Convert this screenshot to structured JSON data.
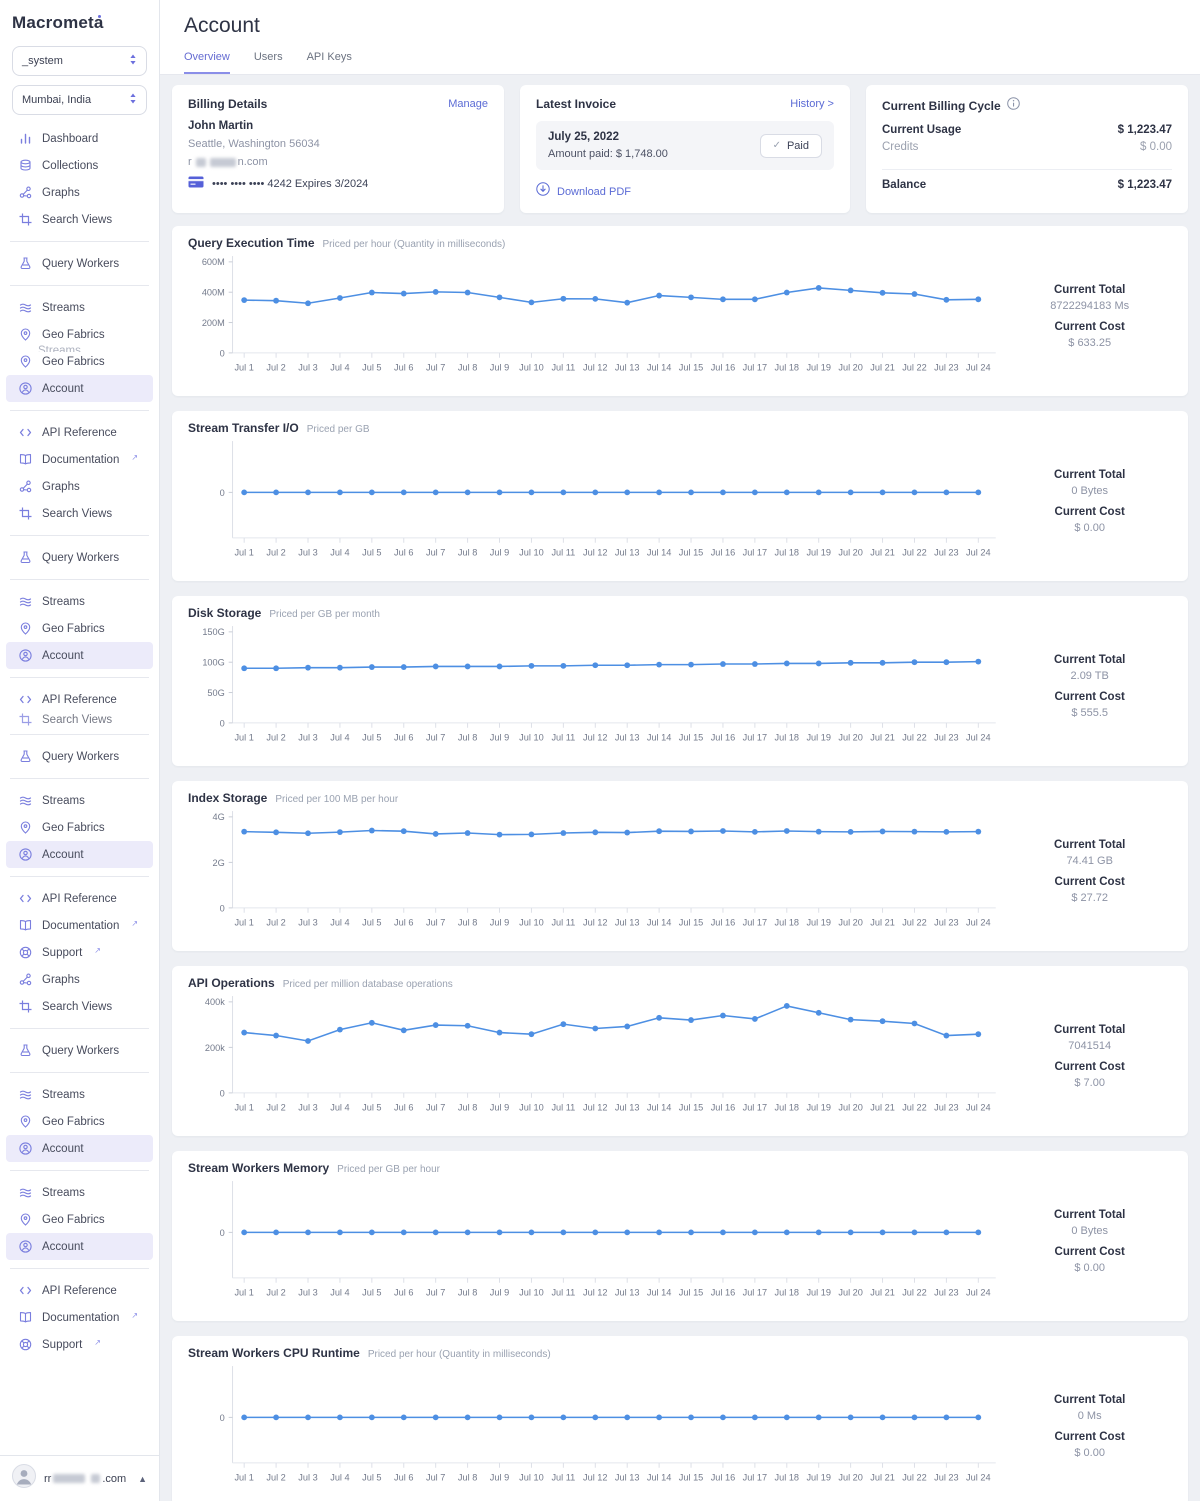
{
  "app": {
    "logo": "Macrometa"
  },
  "sidebar": {
    "fabric_select": "_system",
    "region_select": "Mumbai, India",
    "items": [
      {
        "icon": "dashboard",
        "label": "Dashboard"
      },
      {
        "icon": "collections",
        "label": "Collections"
      },
      {
        "icon": "graphs",
        "label": "Graphs"
      },
      {
        "icon": "search-views",
        "label": "Search Views"
      },
      {
        "type": "divider"
      },
      {
        "icon": "query-workers",
        "label": "Query Workers"
      },
      {
        "type": "divider"
      },
      {
        "icon": "streams",
        "label": "Streams"
      },
      {
        "icon": "geo-fabrics",
        "label": "Geo Fabrics",
        "glitch": "Streams"
      },
      {
        "icon": "geo-fabrics",
        "label": "Geo Fabrics"
      },
      {
        "icon": "account",
        "label": "Account",
        "active": true
      },
      {
        "type": "divider"
      },
      {
        "icon": "api-reference",
        "label": "API Reference"
      },
      {
        "icon": "documentation",
        "label": "Documentation",
        "external": true
      },
      {
        "icon": "graphs",
        "label": "Graphs"
      },
      {
        "icon": "search-views",
        "label": "Search Views"
      },
      {
        "type": "divider"
      },
      {
        "icon": "query-workers",
        "label": "Query Workers"
      },
      {
        "type": "divider"
      },
      {
        "icon": "streams",
        "label": "Streams"
      },
      {
        "icon": "geo-fabrics",
        "label": "Geo Fabrics"
      },
      {
        "icon": "account",
        "label": "Account",
        "active": true
      },
      {
        "type": "divider"
      },
      {
        "icon": "api-reference",
        "label": "API Reference"
      },
      {
        "icon": "search-views",
        "label": "Search Views",
        "clipped": true
      },
      {
        "type": "divider"
      },
      {
        "icon": "query-workers",
        "label": "Query Workers"
      },
      {
        "type": "divider"
      },
      {
        "icon": "streams",
        "label": "Streams"
      },
      {
        "icon": "geo-fabrics",
        "label": "Geo Fabrics"
      },
      {
        "icon": "account",
        "label": "Account",
        "active": true
      },
      {
        "type": "divider"
      },
      {
        "icon": "api-reference",
        "label": "API Reference"
      },
      {
        "icon": "documentation",
        "label": "Documentation",
        "external": true
      },
      {
        "icon": "support",
        "label": "Support",
        "external": true
      },
      {
        "icon": "graphs",
        "label": "Graphs"
      },
      {
        "icon": "search-views",
        "label": "Search Views"
      },
      {
        "type": "divider"
      },
      {
        "icon": "query-workers",
        "label": "Query Workers"
      },
      {
        "type": "divider"
      },
      {
        "icon": "streams",
        "label": "Streams"
      },
      {
        "icon": "geo-fabrics",
        "label": "Geo Fabrics"
      },
      {
        "icon": "account",
        "label": "Account",
        "active": true
      },
      {
        "type": "divider"
      },
      {
        "icon": "streams",
        "label": "Streams"
      },
      {
        "icon": "geo-fabrics",
        "label": "Geo Fabrics"
      },
      {
        "icon": "account",
        "label": "Account",
        "active": true
      },
      {
        "type": "divider"
      },
      {
        "icon": "api-reference",
        "label": "API Reference"
      },
      {
        "icon": "documentation",
        "label": "Documentation",
        "external": true
      },
      {
        "icon": "support",
        "label": "Support",
        "external": true
      }
    ],
    "user_email_start": "rr",
    "user_email_end": ".com"
  },
  "header": {
    "title": "Account",
    "tabs": [
      {
        "label": "Overview",
        "active": true
      },
      {
        "label": "Users"
      },
      {
        "label": "API Keys"
      }
    ]
  },
  "billing_details": {
    "title": "Billing Details",
    "manage_label": "Manage",
    "name": "John Martin",
    "address": "Seattle, Washington 56034",
    "email_start": "r",
    "email_end": "n.com",
    "card_mask": "•••• •••• •••• 4242",
    "card_expiry": "Expires 3/2024"
  },
  "latest_invoice": {
    "title": "Latest Invoice",
    "history_label": "History >",
    "date": "July 25, 2022",
    "amount_line": "Amount paid: $ 1,748.00",
    "paid_label": "Paid",
    "download_label": "Download PDF"
  },
  "billing_cycle": {
    "title": "Current Billing Cycle",
    "usage_label": "Current Usage",
    "usage_value": "$ 1,223.47",
    "credits_label": "Credits",
    "credits_value": "$ 0.00",
    "balance_label": "Balance",
    "balance_value": "$ 1,223.47"
  },
  "stats_labels": {
    "total": "Current Total",
    "cost": "Current Cost"
  },
  "chart_data": {
    "type": "line",
    "line_color": "#4d8fe3",
    "grid": false,
    "legend": "none",
    "categories": [
      "Jul 1",
      "Jul 2",
      "Jul 3",
      "Jul 4",
      "Jul 5",
      "Jul 6",
      "Jul 7",
      "Jul 8",
      "Jul 9",
      "Jul 10",
      "Jul 11",
      "Jul 12",
      "Jul 13",
      "Jul 14",
      "Jul 15",
      "Jul 16",
      "Jul 17",
      "Jul 18",
      "Jul 19",
      "Jul 20",
      "Jul 21",
      "Jul 22",
      "Jul 23",
      "Jul 24"
    ],
    "charts": [
      {
        "title": "Query Execution Time",
        "subtitle": "Priced per hour (Quantity in milliseconds)",
        "unit": "M",
        "ylim": [
          0,
          600
        ],
        "yticks": [
          [
            0,
            "0"
          ],
          [
            200,
            "200M"
          ],
          [
            400,
            "400M"
          ],
          [
            600,
            "600M"
          ]
        ],
        "values": [
          348,
          344,
          327,
          362,
          398,
          391,
          402,
          398,
          366,
          333,
          357,
          356,
          331,
          378,
          366,
          353,
          353,
          398,
          428,
          412,
          396,
          388,
          350,
          353
        ],
        "current_total": "8722294183 Ms",
        "current_cost": "$ 633.25"
      },
      {
        "title": "Stream Transfer I/O",
        "subtitle": "Priced per GB",
        "unit": "GB",
        "ylim": [
          -1,
          1
        ],
        "yticks": [
          [
            0,
            "0"
          ]
        ],
        "values": [
          0,
          0,
          0,
          0,
          0,
          0,
          0,
          0,
          0,
          0,
          0,
          0,
          0,
          0,
          0,
          0,
          0,
          0,
          0,
          0,
          0,
          0,
          0,
          0
        ],
        "current_total": "0 Bytes",
        "current_cost": "$ 0.00"
      },
      {
        "title": "Disk Storage",
        "subtitle": "Priced per GB per month",
        "unit": "G",
        "ylim": [
          0,
          150
        ],
        "yticks": [
          [
            0,
            "0"
          ],
          [
            50,
            "50G"
          ],
          [
            100,
            "100G"
          ],
          [
            150,
            "150G"
          ]
        ],
        "values": [
          90,
          90,
          91,
          91,
          92,
          92,
          93,
          93,
          93,
          94,
          94,
          95,
          95,
          96,
          96,
          97,
          97,
          98,
          98,
          99,
          99,
          100,
          100,
          101
        ],
        "current_total": "2.09 TB",
        "current_cost": "$ 555.5"
      },
      {
        "title": "Index Storage",
        "subtitle": "Priced per 100 MB per hour",
        "unit": "G",
        "ylim": [
          0,
          4
        ],
        "yticks": [
          [
            0,
            "0"
          ],
          [
            2,
            "2G"
          ],
          [
            4,
            "4G"
          ]
        ],
        "values": [
          3.35,
          3.32,
          3.28,
          3.33,
          3.4,
          3.37,
          3.25,
          3.29,
          3.22,
          3.23,
          3.29,
          3.32,
          3.31,
          3.37,
          3.36,
          3.38,
          3.34,
          3.38,
          3.35,
          3.34,
          3.36,
          3.35,
          3.34,
          3.35
        ],
        "current_total": "74.41 GB",
        "current_cost": "$ 27.72"
      },
      {
        "title": "API Operations",
        "subtitle": "Priced per million database operations",
        "unit": "k",
        "ylim": [
          0,
          400
        ],
        "yticks": [
          [
            0,
            "0"
          ],
          [
            200,
            "200k"
          ],
          [
            400,
            "400k"
          ]
        ],
        "values": [
          265,
          252,
          228,
          278,
          308,
          275,
          298,
          295,
          265,
          258,
          302,
          283,
          292,
          330,
          320,
          340,
          325,
          382,
          352,
          322,
          315,
          305,
          252,
          258
        ],
        "current_total": "7041514",
        "current_cost": "$ 7.00"
      },
      {
        "title": "Stream Workers Memory",
        "subtitle": "Priced per GB per hour",
        "unit": "GB",
        "ylim": [
          -1,
          1
        ],
        "yticks": [
          [
            0,
            "0"
          ]
        ],
        "values": [
          0,
          0,
          0,
          0,
          0,
          0,
          0,
          0,
          0,
          0,
          0,
          0,
          0,
          0,
          0,
          0,
          0,
          0,
          0,
          0,
          0,
          0,
          0,
          0
        ],
        "current_total": "0 Bytes",
        "current_cost": "$ 0.00"
      },
      {
        "title": "Stream Workers CPU Runtime",
        "subtitle": "Priced per hour (Quantity in milliseconds)",
        "unit": "Ms",
        "ylim": [
          -1,
          1
        ],
        "yticks": [
          [
            0,
            "0"
          ]
        ],
        "values": [
          0,
          0,
          0,
          0,
          0,
          0,
          0,
          0,
          0,
          0,
          0,
          0,
          0,
          0,
          0,
          0,
          0,
          0,
          0,
          0,
          0,
          0,
          0,
          0
        ],
        "current_total": "0 Ms",
        "current_cost": "$ 0.00"
      }
    ]
  }
}
